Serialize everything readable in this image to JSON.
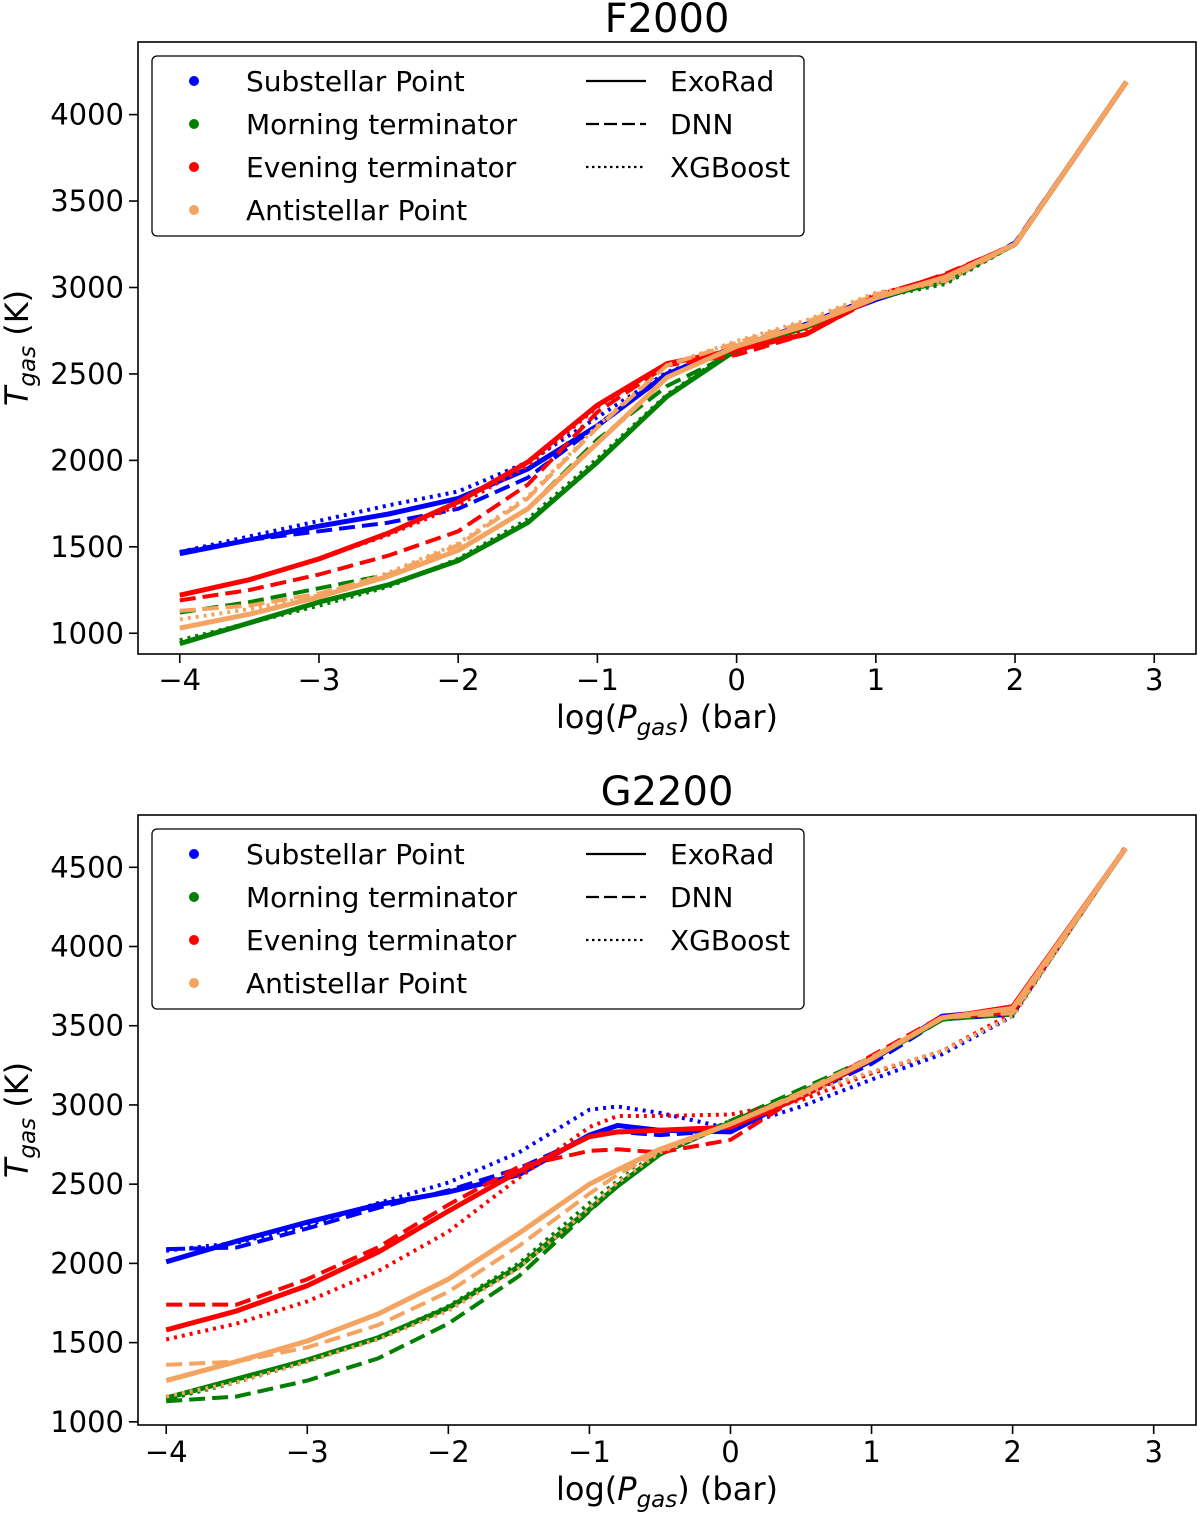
{
  "chart_data": [
    {
      "type": "line",
      "title": "F2000",
      "xlabel": "log(P_gas) (bar)",
      "ylabel": "T_gas (K)",
      "xlim": [
        -4.3,
        3.3
      ],
      "ylim": [
        880,
        4420
      ],
      "xticks": [
        -4,
        -3,
        -2,
        -1,
        0,
        1,
        2,
        3
      ],
      "xtick_labels": [
        "−4",
        "−3",
        "−2",
        "−1",
        "0",
        "1",
        "2",
        "3"
      ],
      "yticks": [
        1000,
        1500,
        2000,
        2500,
        3000,
        3500,
        4000
      ],
      "ytick_labels": [
        "1000",
        "1500",
        "2000",
        "2500",
        "3000",
        "3500",
        "4000"
      ],
      "grid": false,
      "legend_position": "top-left",
      "locations": [
        {
          "name": "Substellar Point",
          "color": "#0000ff"
        },
        {
          "name": "Morning terminator",
          "color": "#008000"
        },
        {
          "name": "Evening terminator",
          "color": "#ff0000"
        },
        {
          "name": "Antistellar Point",
          "color": "#f4a460"
        }
      ],
      "methods": [
        {
          "name": "ExoRad",
          "style": "solid"
        },
        {
          "name": "DNN",
          "style": "dashed"
        },
        {
          "name": "XGBoost",
          "style": "dotted"
        }
      ],
      "series": [
        {
          "location": "Substellar Point",
          "method": "ExoRad",
          "x": [
            -4,
            -3.5,
            -3,
            -2.5,
            -2,
            -1.5,
            -1,
            -0.5,
            0,
            0.5,
            1,
            1.5,
            2,
            2.8
          ],
          "y": [
            1460,
            1540,
            1620,
            1690,
            1780,
            1950,
            2200,
            2500,
            2660,
            2780,
            2930,
            3060,
            3250,
            4190
          ]
        },
        {
          "location": "Substellar Point",
          "method": "DNN",
          "x": [
            -4,
            -3.5,
            -3,
            -2.5,
            -2,
            -1.5,
            -1,
            -0.5,
            0,
            0.5,
            1,
            1.5,
            2,
            2.8
          ],
          "y": [
            1470,
            1540,
            1590,
            1640,
            1720,
            1900,
            2200,
            2500,
            2660,
            2790,
            2950,
            3050,
            3260,
            4190
          ]
        },
        {
          "location": "Substellar Point",
          "method": "XGBoost",
          "x": [
            -4,
            -3.5,
            -3,
            -2.5,
            -2,
            -1.5,
            -1,
            -0.5,
            0,
            0.5,
            1,
            1.5,
            2,
            2.8
          ],
          "y": [
            1470,
            1560,
            1650,
            1740,
            1820,
            1990,
            2250,
            2510,
            2650,
            2790,
            2950,
            3030,
            3250,
            4190
          ]
        },
        {
          "location": "Morning terminator",
          "method": "ExoRad",
          "x": [
            -4,
            -3.5,
            -3,
            -2.5,
            -2,
            -1.5,
            -1,
            -0.5,
            0,
            0.5,
            1,
            1.5,
            2,
            2.8
          ],
          "y": [
            940,
            1060,
            1180,
            1280,
            1420,
            1640,
            1990,
            2370,
            2640,
            2770,
            2940,
            3040,
            3250,
            4190
          ]
        },
        {
          "location": "Morning terminator",
          "method": "DNN",
          "x": [
            -4,
            -3.5,
            -3,
            -2.5,
            -2,
            -1.5,
            -1,
            -0.5,
            0,
            0.5,
            1,
            1.5,
            2,
            2.8
          ],
          "y": [
            1120,
            1180,
            1260,
            1340,
            1480,
            1720,
            2120,
            2430,
            2630,
            2770,
            2940,
            3040,
            3250,
            4190
          ]
        },
        {
          "location": "Morning terminator",
          "method": "XGBoost",
          "x": [
            -4,
            -3.5,
            -3,
            -2.5,
            -2,
            -1.5,
            -1,
            -0.5,
            0,
            0.5,
            1,
            1.5,
            2,
            2.8
          ],
          "y": [
            960,
            1060,
            1160,
            1270,
            1430,
            1660,
            2010,
            2380,
            2650,
            2780,
            2940,
            3020,
            3250,
            4190
          ]
        },
        {
          "location": "Evening terminator",
          "method": "ExoRad",
          "x": [
            -4,
            -3.5,
            -3,
            -2.5,
            -2,
            -1.5,
            -1,
            -0.5,
            0,
            0.5,
            1,
            1.5,
            2,
            2.8
          ],
          "y": [
            1220,
            1310,
            1430,
            1580,
            1760,
            1990,
            2320,
            2560,
            2640,
            2730,
            2950,
            3070,
            3250,
            4190
          ]
        },
        {
          "location": "Evening terminator",
          "method": "DNN",
          "x": [
            -4,
            -3.5,
            -3,
            -2.5,
            -2,
            -1.5,
            -1,
            -0.5,
            0,
            0.5,
            1,
            1.5,
            2,
            2.8
          ],
          "y": [
            1190,
            1250,
            1340,
            1450,
            1590,
            1860,
            2280,
            2550,
            2610,
            2730,
            2940,
            3080,
            3250,
            4190
          ]
        },
        {
          "location": "Evening terminator",
          "method": "XGBoost",
          "x": [
            -4,
            -3.5,
            -3,
            -2.5,
            -2,
            -1.5,
            -1,
            -0.5,
            0,
            0.5,
            1,
            1.5,
            2,
            2.8
          ],
          "y": [
            1220,
            1310,
            1430,
            1570,
            1740,
            1970,
            2310,
            2560,
            2640,
            2760,
            2960,
            3060,
            3250,
            4190
          ]
        },
        {
          "location": "Antistellar Point",
          "method": "ExoRad",
          "x": [
            -4,
            -3.5,
            -3,
            -2.5,
            -2,
            -1.5,
            -1,
            -0.5,
            0,
            0.5,
            1,
            1.5,
            2,
            2.8
          ],
          "y": [
            1030,
            1110,
            1210,
            1330,
            1480,
            1720,
            2100,
            2480,
            2660,
            2780,
            2940,
            3060,
            3250,
            4190
          ]
        },
        {
          "location": "Antistellar Point",
          "method": "DNN",
          "x": [
            -4,
            -3.5,
            -3,
            -2.5,
            -2,
            -1.5,
            -1,
            -0.5,
            0,
            0.5,
            1,
            1.5,
            2,
            2.8
          ],
          "y": [
            1130,
            1160,
            1230,
            1340,
            1510,
            1780,
            2190,
            2550,
            2680,
            2800,
            2960,
            3040,
            3250,
            4190
          ]
        },
        {
          "location": "Antistellar Point",
          "method": "XGBoost",
          "x": [
            -4,
            -3.5,
            -3,
            -2.5,
            -2,
            -1.5,
            -1,
            -0.5,
            0,
            0.5,
            1,
            1.5,
            2,
            2.8
          ],
          "y": [
            1080,
            1140,
            1220,
            1350,
            1520,
            1790,
            2200,
            2550,
            2690,
            2810,
            2970,
            3030,
            3250,
            4190
          ]
        }
      ]
    },
    {
      "type": "line",
      "title": "G2200",
      "xlabel": "log(P_gas) (bar)",
      "ylabel": "T_gas (K)",
      "xlim": [
        -4.2,
        3.3
      ],
      "ylim": [
        980,
        4830
      ],
      "xticks": [
        -4,
        -3,
        -2,
        -1,
        0,
        1,
        2,
        3
      ],
      "xtick_labels": [
        "−4",
        "−3",
        "−2",
        "−1",
        "0",
        "1",
        "2",
        "3"
      ],
      "yticks": [
        1000,
        1500,
        2000,
        2500,
        3000,
        3500,
        4000,
        4500
      ],
      "ytick_labels": [
        "1000",
        "1500",
        "2000",
        "2500",
        "3000",
        "3500",
        "4000",
        "4500"
      ],
      "grid": false,
      "legend_position": "top-left",
      "locations": [
        {
          "name": "Substellar Point",
          "color": "#0000ff"
        },
        {
          "name": "Morning terminator",
          "color": "#008000"
        },
        {
          "name": "Evening terminator",
          "color": "#ff0000"
        },
        {
          "name": "Antistellar Point",
          "color": "#f4a460"
        }
      ],
      "methods": [
        {
          "name": "ExoRad",
          "style": "solid"
        },
        {
          "name": "DNN",
          "style": "dashed"
        },
        {
          "name": "XGBoost",
          "style": "dotted"
        }
      ],
      "series": [
        {
          "location": "Substellar Point",
          "method": "ExoRad",
          "x": [
            -4,
            -3.5,
            -3,
            -2.5,
            -2,
            -1.5,
            -1,
            -0.8,
            -0.5,
            0,
            0.5,
            1,
            1.5,
            2,
            2.8
          ],
          "y": [
            2010,
            2140,
            2260,
            2370,
            2450,
            2560,
            2810,
            2870,
            2840,
            2830,
            3060,
            3280,
            3560,
            3600,
            4620
          ]
        },
        {
          "location": "Substellar Point",
          "method": "DNN",
          "x": [
            -4,
            -3.5,
            -3,
            -2.5,
            -2,
            -1.5,
            -1,
            -0.8,
            -0.5,
            0,
            0.5,
            1,
            1.5,
            2,
            2.8
          ],
          "y": [
            2090,
            2100,
            2220,
            2350,
            2460,
            2600,
            2800,
            2830,
            2810,
            2840,
            3050,
            3260,
            3540,
            3570,
            4620
          ]
        },
        {
          "location": "Substellar Point",
          "method": "XGBoost",
          "x": [
            -4,
            -3.5,
            -3,
            -2.5,
            -2,
            -1.5,
            -1,
            -0.8,
            -0.5,
            0,
            0.5,
            1,
            1.5,
            2,
            2.8
          ],
          "y": [
            2080,
            2130,
            2240,
            2380,
            2510,
            2700,
            2970,
            2990,
            2950,
            2850,
            2990,
            3160,
            3320,
            3560,
            4630
          ]
        },
        {
          "location": "Morning terminator",
          "method": "ExoRad",
          "x": [
            -4,
            -3.5,
            -3,
            -2.5,
            -2,
            -1.5,
            -1,
            -0.8,
            -0.5,
            0,
            0.5,
            1,
            1.5,
            2,
            2.8
          ],
          "y": [
            1150,
            1270,
            1390,
            1530,
            1720,
            1980,
            2340,
            2490,
            2690,
            2890,
            3080,
            3290,
            3540,
            3600,
            4620
          ]
        },
        {
          "location": "Morning terminator",
          "method": "DNN",
          "x": [
            -4,
            -3.5,
            -3,
            -2.5,
            -2,
            -1.5,
            -1,
            -0.8,
            -0.5,
            0,
            0.5,
            1,
            1.5,
            2,
            2.8
          ],
          "y": [
            1130,
            1160,
            1260,
            1400,
            1620,
            1920,
            2330,
            2490,
            2700,
            2900,
            3100,
            3300,
            3540,
            3570,
            4620
          ]
        },
        {
          "location": "Morning terminator",
          "method": "XGBoost",
          "x": [
            -4,
            -3.5,
            -3,
            -2.5,
            -2,
            -1.5,
            -1,
            -0.8,
            -0.5,
            0,
            0.5,
            1,
            1.5,
            2,
            2.8
          ],
          "y": [
            1140,
            1250,
            1380,
            1530,
            1730,
            2000,
            2380,
            2520,
            2710,
            2900,
            3080,
            3200,
            3340,
            3560,
            4620
          ]
        },
        {
          "location": "Evening terminator",
          "method": "ExoRad",
          "x": [
            -4,
            -3.5,
            -3,
            -2.5,
            -2,
            -1.5,
            -1,
            -0.8,
            -0.5,
            0,
            0.5,
            1,
            1.5,
            2,
            2.8
          ],
          "y": [
            1580,
            1700,
            1860,
            2070,
            2330,
            2580,
            2800,
            2830,
            2840,
            2860,
            3050,
            3290,
            3550,
            3620,
            4620
          ]
        },
        {
          "location": "Evening terminator",
          "method": "DNN",
          "x": [
            -4,
            -3.5,
            -3,
            -2.5,
            -2,
            -1.5,
            -1,
            -0.8,
            -0.5,
            0,
            0.5,
            1,
            1.5,
            2,
            2.8
          ],
          "y": [
            1740,
            1740,
            1900,
            2100,
            2370,
            2610,
            2710,
            2720,
            2700,
            2780,
            3060,
            3310,
            3560,
            3580,
            4620
          ]
        },
        {
          "location": "Evening terminator",
          "method": "XGBoost",
          "x": [
            -4,
            -3.5,
            -3,
            -2.5,
            -2,
            -1.5,
            -1,
            -0.8,
            -0.5,
            0,
            0.5,
            1,
            1.5,
            2,
            2.8
          ],
          "y": [
            1520,
            1620,
            1760,
            1950,
            2200,
            2540,
            2860,
            2930,
            2930,
            2940,
            3030,
            3200,
            3340,
            3580,
            4630
          ]
        },
        {
          "location": "Antistellar Point",
          "method": "ExoRad",
          "x": [
            -4,
            -3.5,
            -3,
            -2.5,
            -2,
            -1.5,
            -1,
            -0.8,
            -0.5,
            0,
            0.5,
            1,
            1.5,
            2,
            2.8
          ],
          "y": [
            1260,
            1380,
            1510,
            1680,
            1900,
            2190,
            2500,
            2590,
            2720,
            2880,
            3070,
            3290,
            3550,
            3610,
            4620
          ]
        },
        {
          "location": "Antistellar Point",
          "method": "DNN",
          "x": [
            -4,
            -3.5,
            -3,
            -2.5,
            -2,
            -1.5,
            -1,
            -0.8,
            -0.5,
            0,
            0.5,
            1,
            1.5,
            2,
            2.8
          ],
          "y": [
            1360,
            1380,
            1470,
            1610,
            1820,
            2110,
            2440,
            2560,
            2710,
            2880,
            3080,
            3300,
            3550,
            3580,
            4620
          ]
        },
        {
          "location": "Antistellar Point",
          "method": "XGBoost",
          "x": [
            -4,
            -3.5,
            -3,
            -2.5,
            -2,
            -1.5,
            -1,
            -0.8,
            -0.5,
            0,
            0.5,
            1,
            1.5,
            2,
            2.8
          ],
          "y": [
            1160,
            1250,
            1380,
            1520,
            1700,
            1970,
            2350,
            2510,
            2700,
            2880,
            3060,
            3210,
            3340,
            3560,
            4620
          ]
        }
      ]
    }
  ]
}
